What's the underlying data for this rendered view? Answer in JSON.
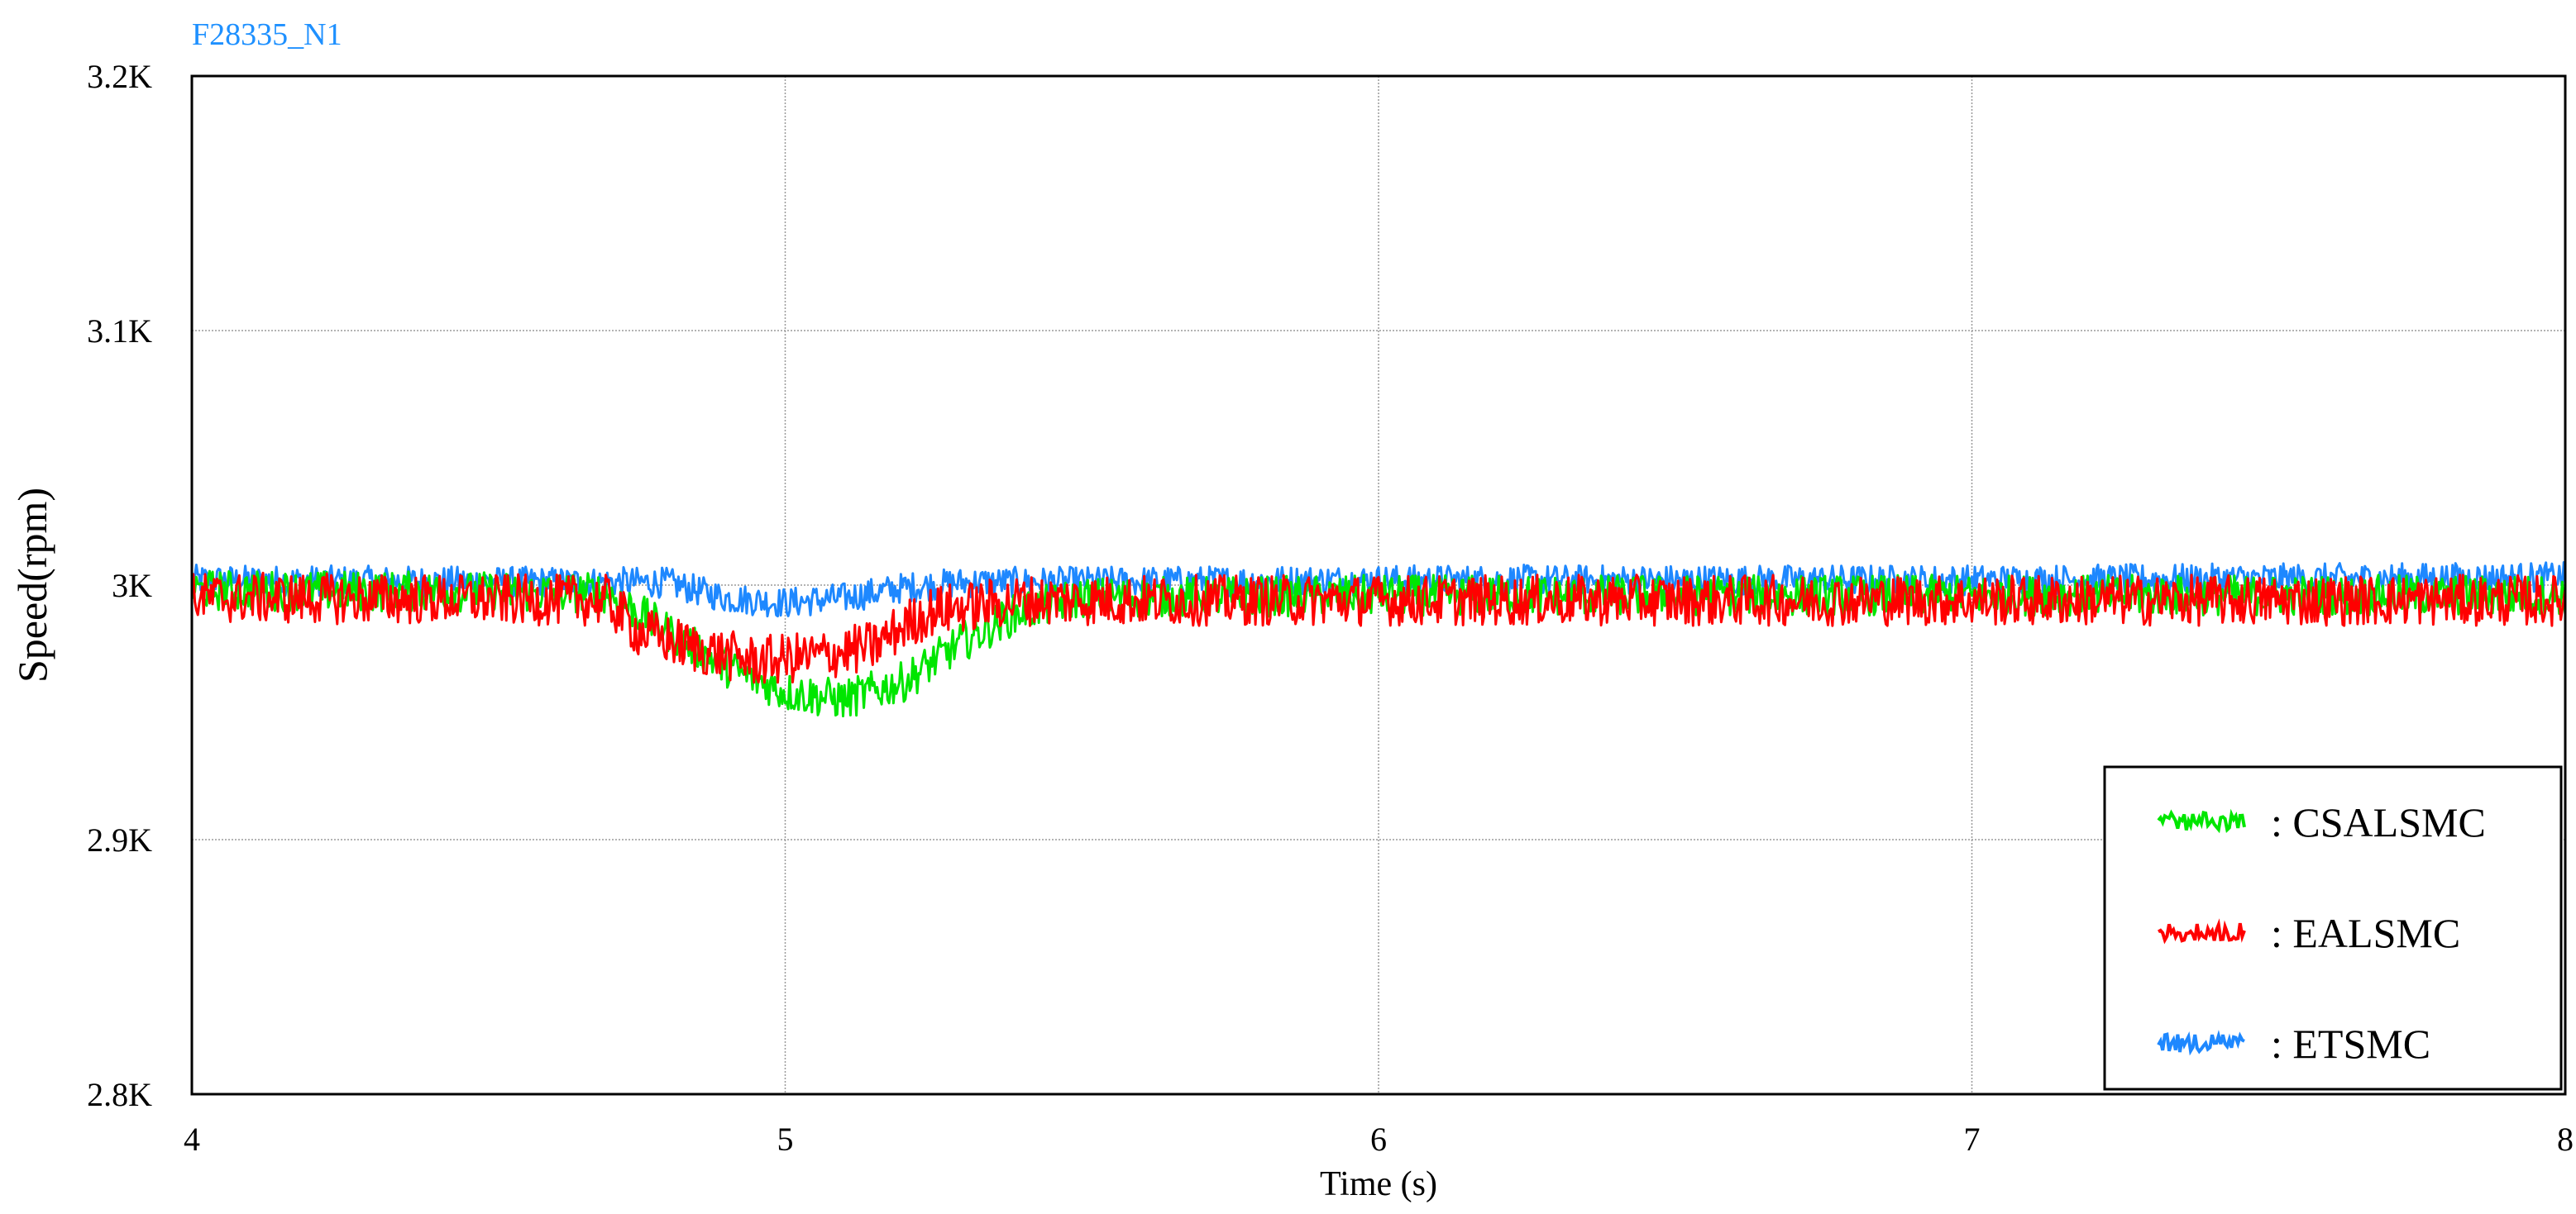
{
  "chart_data": {
    "type": "line",
    "title": "F28335_N1",
    "xlabel": "Time (s)",
    "ylabel": "Speed(rpm)",
    "xlim": [
      4,
      8
    ],
    "ylim": [
      2800,
      3200
    ],
    "x_ticks": [
      4,
      5,
      6,
      7,
      8
    ],
    "x_tick_labels": [
      "4",
      "5",
      "6",
      "7",
      "8"
    ],
    "y_ticks": [
      2800,
      2900,
      3000,
      3100,
      3200
    ],
    "y_tick_labels": [
      "2.8K",
      "2.9K",
      "3K",
      "3.1K",
      "3.2K"
    ],
    "grid": true,
    "legend_position": "bottom-right",
    "series": [
      {
        "name": ": CSALSMC",
        "color": "#00e600",
        "x": [
          4.0,
          4.7,
          4.8,
          4.9,
          5.0,
          5.1,
          5.2,
          5.3,
          5.4,
          5.5,
          6.0,
          7.0,
          8.0
        ],
        "y": [
          2998,
          2997,
          2982,
          2968,
          2958,
          2955,
          2962,
          2978,
          2990,
          2995,
          2996,
          2996,
          2996
        ],
        "noise": 8
      },
      {
        "name": ": EALSMC",
        "color": "#ff0000",
        "x": [
          4.0,
          4.7,
          4.75,
          4.85,
          4.95,
          5.05,
          5.15,
          5.2,
          5.25,
          5.4,
          6.0,
          7.0,
          8.0
        ],
        "y": [
          2995,
          2994,
          2982,
          2975,
          2970,
          2972,
          2976,
          2984,
          2990,
          2994,
          2994,
          2994,
          2994
        ],
        "noise": 10
      },
      {
        "name": ": ETSMC",
        "color": "#1e88ff",
        "x": [
          4.0,
          4.8,
          4.9,
          5.0,
          5.1,
          5.2,
          5.3,
          6.0,
          7.0,
          8.0
        ],
        "y": [
          3002,
          3001,
          2995,
          2993,
          2995,
          2999,
          3001,
          3002,
          3002,
          3003
        ],
        "noise": 6
      }
    ]
  }
}
